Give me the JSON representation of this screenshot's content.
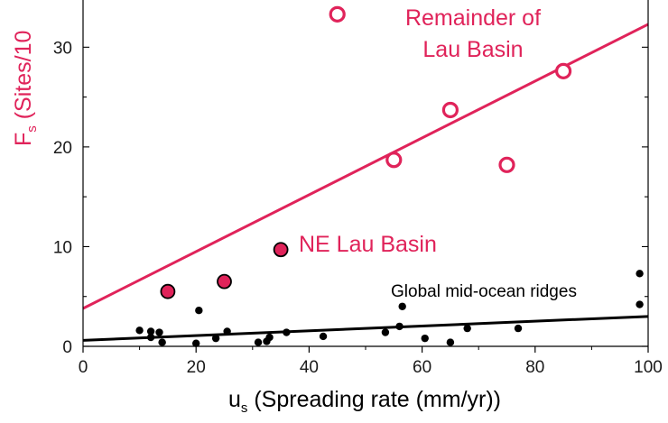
{
  "chart_data": {
    "type": "scatter",
    "title": "",
    "xlabel": {
      "main": "u",
      "sub": "s",
      "rest": " (Spreading rate (mm/yr))"
    },
    "ylabel": {
      "main": "F",
      "sub": "s",
      "rest": " (Sites/10"
    },
    "xlim": [
      0,
      100
    ],
    "ylim": [
      0,
      36
    ],
    "x_ticks": [
      "0",
      "20",
      "40",
      "60",
      "80",
      "100"
    ],
    "y_ticks": [
      "0",
      "10",
      "20",
      "30"
    ],
    "grid": false,
    "colors": {
      "accent": "#e0235a",
      "black": "#000000"
    },
    "series": [
      {
        "name": "Remainder of Lau Basin",
        "label_lines": [
          "Remainder of",
          "Lau Basin"
        ],
        "marker": "open-circle",
        "color": "#e0235a",
        "points": [
          [
            45,
            33.3
          ],
          [
            55,
            18.7
          ],
          [
            65,
            23.7
          ],
          [
            75,
            18.2
          ],
          [
            85,
            27.6
          ]
        ]
      },
      {
        "name": "NE Lau Basin",
        "label_lines": [
          "NE Lau Basin"
        ],
        "marker": "filled-circle",
        "color": "#e0235a",
        "points": [
          [
            15,
            5.5
          ],
          [
            25,
            6.5
          ],
          [
            35,
            9.7
          ]
        ]
      },
      {
        "name": "Global mid-ocean ridges",
        "label_lines": [
          "Global mid-ocean ridges"
        ],
        "marker": "dot",
        "color": "#000000",
        "points": [
          [
            10,
            1.6
          ],
          [
            12,
            0.9
          ],
          [
            12,
            1.5
          ],
          [
            13.5,
            1.4
          ],
          [
            14,
            0.4
          ],
          [
            20,
            0.3
          ],
          [
            20.5,
            3.6
          ],
          [
            23.5,
            0.8
          ],
          [
            25.5,
            1.5
          ],
          [
            31,
            0.4
          ],
          [
            32.5,
            0.5
          ],
          [
            33,
            0.9
          ],
          [
            36,
            1.4
          ],
          [
            42.5,
            1.0
          ],
          [
            53.5,
            1.4
          ],
          [
            56,
            2.0
          ],
          [
            56.5,
            4.0
          ],
          [
            60.5,
            0.8
          ],
          [
            65,
            0.4
          ],
          [
            68,
            1.8
          ],
          [
            77,
            1.8
          ],
          [
            98.5,
            7.3
          ],
          [
            98.5,
            4.2
          ]
        ]
      }
    ],
    "fit_lines": [
      {
        "series": "Remainder of Lau Basin",
        "color": "#e0235a",
        "from": [
          0,
          3.8
        ],
        "to": [
          100,
          32.3
        ]
      },
      {
        "series": "Global mid-ocean ridges",
        "color": "#000000",
        "from": [
          0,
          0.6
        ],
        "to": [
          100,
          3.0
        ]
      }
    ]
  }
}
